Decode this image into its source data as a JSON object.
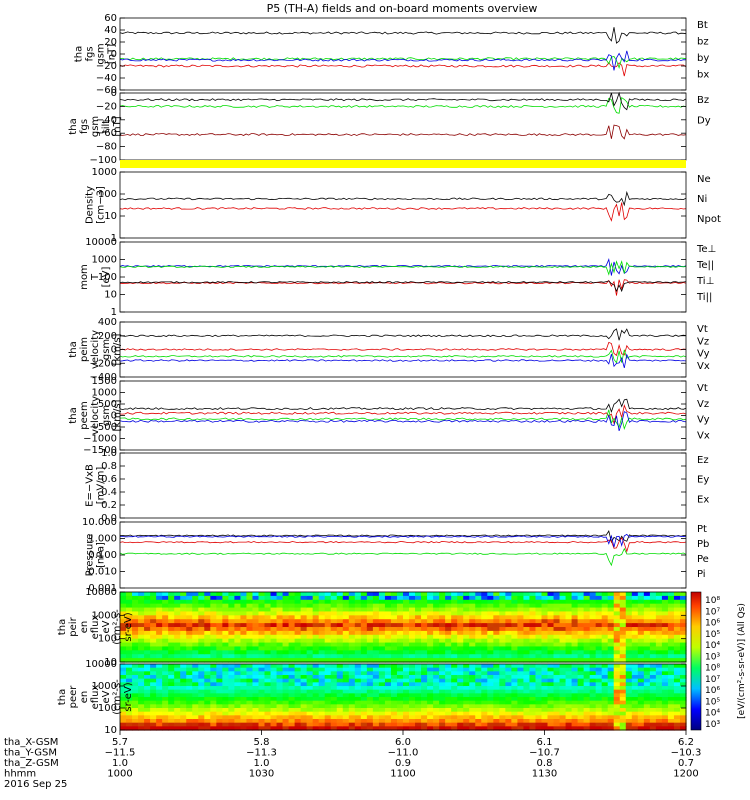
{
  "title": "P5 (TH-A) fields and on-board moments overview",
  "colors": {
    "black": "#000000",
    "red": "#e00000",
    "green": "#00dd00",
    "blue": "#0000e0",
    "darkred": "#8b0000",
    "yellow": "#ffff00"
  },
  "chart_data": [
    {
      "id": "fgs",
      "type": "line",
      "ylabel": [
        "tha",
        "fgs",
        "gsm",
        "[nT]"
      ],
      "ylim": [
        -60,
        60
      ],
      "yticks": [
        "60",
        "40",
        "20",
        "0",
        "−20",
        "−40",
        "−60"
      ],
      "series": [
        {
          "name": "Bt",
          "color": "black",
          "level": 35
        },
        {
          "name": "bz",
          "color": "red",
          "level": -20
        },
        {
          "name": "by",
          "color": "green",
          "level": -8
        },
        {
          "name": "bx",
          "color": "blue",
          "level": -10
        }
      ]
    },
    {
      "id": "fgs_tilt",
      "type": "line",
      "ylabel": [
        "tha",
        "fgs",
        "gsm",
        "tilt",
        "[nT]"
      ],
      "ylim": [
        -100,
        0
      ],
      "yticks": [
        "0",
        "−20",
        "−40",
        "−60",
        "−80",
        "−100"
      ],
      "series": [
        {
          "name": "Bz",
          "color": "darkred",
          "level": -62
        },
        {
          "name": "Dy",
          "color": "green",
          "level": -20
        },
        {
          "name": "",
          "color": "black",
          "level": -10
        }
      ]
    },
    {
      "id": "density",
      "type": "line",
      "log": true,
      "ylabel": [
        "Density",
        "[cm−3]"
      ],
      "ylim": [
        1,
        1000
      ],
      "yticks": [
        "1000",
        "100",
        "10",
        "1"
      ],
      "series": [
        {
          "name": "Ne",
          "color": "red",
          "level": 22
        },
        {
          "name": "Ni",
          "color": "black",
          "level": 60
        },
        {
          "name": "Npot",
          "color": "blue",
          "level": null
        }
      ]
    },
    {
      "id": "temp",
      "type": "line",
      "log": true,
      "ylabel": [
        "mom",
        "T",
        "[eV]"
      ],
      "ylim": [
        1,
        10000
      ],
      "yticks": [
        "10000",
        "1000",
        "100",
        "10",
        "1"
      ],
      "series": [
        {
          "name": "Te⊥",
          "color": "red",
          "level": 45
        },
        {
          "name": "Te||",
          "color": "black",
          "level": 50
        },
        {
          "name": "Ti⊥",
          "color": "blue",
          "level": 420
        },
        {
          "name": "Ti||",
          "color": "green",
          "level": 380
        }
      ]
    },
    {
      "id": "velocity",
      "type": "line",
      "ylabel": [
        "tha",
        "peim",
        "velocity",
        "gsm",
        "[km/s]"
      ],
      "ylim": [
        -400,
        400
      ],
      "yticks": [
        "400",
        "200",
        "0",
        "−200",
        "−400"
      ],
      "series": [
        {
          "name": "Vt",
          "color": "black",
          "level": 200
        },
        {
          "name": "Vz",
          "color": "red",
          "level": 0
        },
        {
          "name": "Vy",
          "color": "green",
          "level": -100
        },
        {
          "name": "Vx",
          "color": "blue",
          "level": -160
        }
      ]
    },
    {
      "id": "velocity2",
      "type": "line",
      "ylabel": [
        "tha",
        "peem",
        "velocity",
        "gsm",
        "[km/s]"
      ],
      "ylim": [
        -1500,
        1500
      ],
      "yticks": [
        "1500",
        "1000",
        "500",
        "0",
        "−500",
        "−1000",
        "−1500"
      ],
      "series": [
        {
          "name": "Vt",
          "color": "black",
          "level": 300
        },
        {
          "name": "Vz",
          "color": "red",
          "level": 100
        },
        {
          "name": "Vy",
          "color": "green",
          "level": -150
        },
        {
          "name": "Vx",
          "color": "blue",
          "level": -250
        }
      ]
    },
    {
      "id": "efield",
      "type": "line",
      "ylabel": [
        "E=−VxB",
        "[mV/m]"
      ],
      "ylim": [
        0,
        1
      ],
      "yticks": [
        "1.0",
        "0.8",
        "0.6",
        "0.4",
        "0.2",
        "0.0"
      ],
      "series": [
        {
          "name": "Ez",
          "color": "red",
          "level": null
        },
        {
          "name": "Ey",
          "color": "green",
          "level": null
        },
        {
          "name": "Ex",
          "color": "blue",
          "level": null
        }
      ]
    },
    {
      "id": "pressure",
      "type": "line",
      "log": true,
      "ylabel": [
        "Pressure",
        "[nPa]"
      ],
      "ylim": [
        0.001,
        10
      ],
      "yticks": [
        "10.000",
        "1.000",
        "0.100",
        "0.010",
        "0.001"
      ],
      "series": [
        {
          "name": "Pt",
          "color": "black",
          "level": 1.5
        },
        {
          "name": "Pb",
          "color": "red",
          "level": 0.6
        },
        {
          "name": "Pe",
          "color": "green",
          "level": 0.12
        },
        {
          "name": "Pi",
          "color": "blue",
          "level": 1.3
        }
      ]
    },
    {
      "id": "peir",
      "type": "heatmap",
      "ylabel": [
        "tha",
        "peir",
        "en",
        "eflux",
        "eV",
        "(cm²-s-",
        "sr-eV)"
      ],
      "ylim": [
        10,
        10000
      ],
      "yticks": [
        "10000",
        "1000",
        "100",
        "10"
      ]
    },
    {
      "id": "peer",
      "type": "heatmap",
      "ylabel": [
        "tha",
        "peer",
        "en",
        "eflux",
        "eV",
        "(cm²-s-",
        "sr-eV)"
      ],
      "ylim": [
        10,
        10000
      ],
      "yticks": [
        "10000",
        "1000",
        "100",
        "10"
      ]
    }
  ],
  "colorbar": {
    "label": "[eV/(cm²-s-sr-eV)] (All Qs)",
    "ticks": [
      "10⁸",
      "10⁷",
      "10⁶",
      "10⁵",
      "10⁴",
      "10³",
      "10⁸",
      "10⁷",
      "10⁶",
      "10⁵",
      "10⁴",
      "10³"
    ]
  },
  "xaxis": {
    "rows": [
      {
        "label": "tha_X-GSM",
        "values": [
          "5.7",
          "5.8",
          "6.0",
          "6.1",
          "6.2"
        ]
      },
      {
        "label": "tha_Y-GSM",
        "values": [
          "−11.5",
          "−11.3",
          "−11.0",
          "−10.7",
          "−10.3"
        ]
      },
      {
        "label": "tha_Z-GSM",
        "values": [
          "1.0",
          "1.0",
          "0.9",
          "0.8",
          "0.7"
        ]
      },
      {
        "label": "hhmm",
        "values": [
          "1000",
          "1030",
          "1100",
          "1130",
          "1200"
        ]
      }
    ],
    "date": "2016 Sep 25"
  }
}
